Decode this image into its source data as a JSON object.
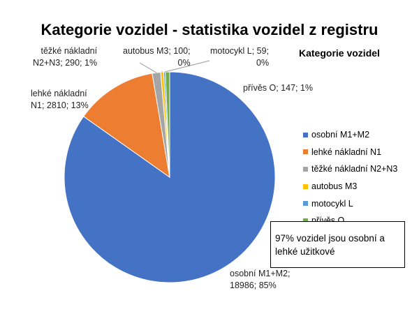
{
  "chart_data": {
    "type": "pie",
    "title": "Kategorie vozidel - statistika vozidel z registru",
    "legend_title": "Kategorie vozidel",
    "legend_position": "right",
    "slices": [
      {
        "name": "osobní M1+M2",
        "value": 18986,
        "percent": "85%",
        "label_lines": [
          "osobní M1+M2;",
          "18986; 85%"
        ],
        "color": "#4472C4"
      },
      {
        "name": "lehké nákladní N1",
        "value": 2810,
        "percent": "13%",
        "label_lines": [
          "lehké nákladní",
          "N1; 2810; 13%"
        ],
        "color": "#ED7D31"
      },
      {
        "name": "těžké nákladní N2+N3",
        "value": 290,
        "percent": "1%",
        "label_lines": [
          "těžké nákladní",
          "N2+N3; 290; 1%"
        ],
        "color": "#A5A5A5"
      },
      {
        "name": "autobus M3",
        "value": 100,
        "percent": "0%",
        "label_lines": [
          "autobus M3; 100;",
          "0%"
        ],
        "color": "#FFC000"
      },
      {
        "name": "motocykl L",
        "value": 59,
        "percent": "0%",
        "label_lines": [
          "motocykl L; 59;",
          "0%"
        ],
        "color": "#5B9BD5"
      },
      {
        "name": "přívěs O",
        "value": 147,
        "percent": "1%",
        "label_lines": [
          "přívěs O; 147; 1%"
        ],
        "color": "#70AD47"
      }
    ],
    "note": "97% vozidel jsou osobní a lehké užitkové"
  }
}
